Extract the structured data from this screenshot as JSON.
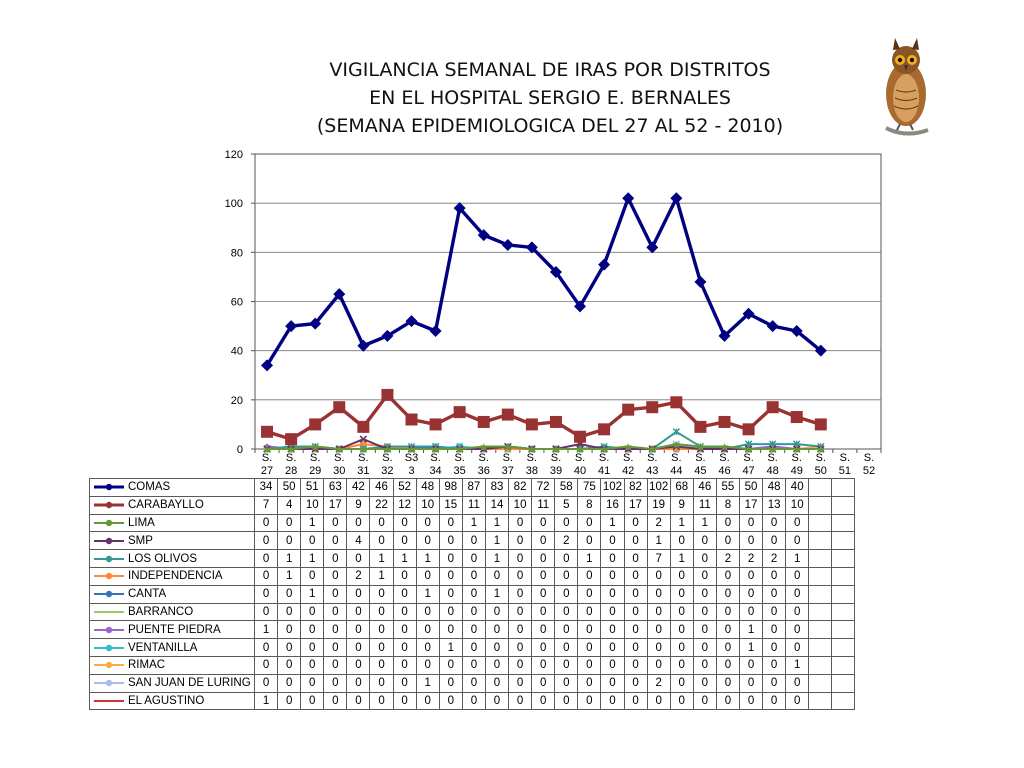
{
  "title_lines": [
    "VIGILANCIA SEMANAL DE IRAS POR DISTRITOS",
    "EN EL HOSPITAL SERGIO E. BERNALES",
    "(SEMANA EPIDEMIOLOGICA DEL 27 AL 52 - 2010)"
  ],
  "chart_data": {
    "type": "line",
    "title": "VIGILANCIA SEMANAL DE IRAS POR DISTRITOS EN EL HOSPITAL SERGIO E. BERNALES (SEMANA EPIDEMIOLOGICA DEL 27 AL 52 - 2010)",
    "categories": [
      [
        "S.",
        "27"
      ],
      [
        "S.",
        "28"
      ],
      [
        "S.",
        "29"
      ],
      [
        "S.",
        "30"
      ],
      [
        "S.",
        "31"
      ],
      [
        "S.",
        "32"
      ],
      [
        "S3",
        "3"
      ],
      [
        "S.",
        "34"
      ],
      [
        "S.",
        "35"
      ],
      [
        "S.",
        "36"
      ],
      [
        "S.",
        "37"
      ],
      [
        "S.",
        "38"
      ],
      [
        "S.",
        "39"
      ],
      [
        "S.",
        "40"
      ],
      [
        "S.",
        "41"
      ],
      [
        "S.",
        "42"
      ],
      [
        "S.",
        "43"
      ],
      [
        "S.",
        "44"
      ],
      [
        "S.",
        "45"
      ],
      [
        "S.",
        "46"
      ],
      [
        "S.",
        "47"
      ],
      [
        "S.",
        "48"
      ],
      [
        "S.",
        "49"
      ],
      [
        "S.",
        "50"
      ],
      [
        "S.",
        "51"
      ],
      [
        "S.",
        "52"
      ]
    ],
    "ylim": [
      0,
      120
    ],
    "yticks": [
      "0",
      "20",
      "40",
      "60",
      "80",
      "100",
      "120"
    ],
    "grid": "horizontal",
    "legend": "data-table",
    "series": [
      {
        "name": "COMAS",
        "color": "#000080",
        "marker": "diamond",
        "values": [
          34,
          50,
          51,
          63,
          42,
          46,
          52,
          48,
          98,
          87,
          83,
          82,
          72,
          58,
          75,
          102,
          82,
          102,
          68,
          46,
          55,
          50,
          48,
          40,
          null,
          null
        ]
      },
      {
        "name": "CARABAYLLO",
        "color": "#993333",
        "marker": "square",
        "values": [
          7,
          4,
          10,
          17,
          9,
          22,
          12,
          10,
          15,
          11,
          14,
          10,
          11,
          5,
          8,
          16,
          17,
          19,
          9,
          11,
          8,
          17,
          13,
          10,
          null,
          null
        ]
      },
      {
        "name": "LIMA",
        "color": "#669933",
        "marker": "triangle",
        "values": [
          0,
          0,
          1,
          0,
          0,
          0,
          0,
          0,
          0,
          1,
          1,
          0,
          0,
          0,
          0,
          1,
          0,
          2,
          1,
          1,
          0,
          0,
          0,
          0,
          null,
          null
        ]
      },
      {
        "name": "SMP",
        "color": "#663366",
        "marker": "x",
        "values": [
          0,
          0,
          0,
          0,
          4,
          0,
          0,
          0,
          0,
          0,
          1,
          0,
          0,
          2,
          0,
          0,
          0,
          1,
          0,
          0,
          0,
          0,
          0,
          0,
          null,
          null
        ]
      },
      {
        "name": "LOS OLIVOS",
        "color": "#339999",
        "marker": "star",
        "values": [
          0,
          1,
          1,
          0,
          0,
          1,
          1,
          1,
          0,
          0,
          1,
          0,
          0,
          0,
          1,
          0,
          0,
          7,
          1,
          0,
          2,
          2,
          2,
          1,
          null,
          null
        ]
      },
      {
        "name": "INDEPENDENCIA",
        "color": "#ff8833",
        "marker": "circle",
        "values": [
          0,
          1,
          0,
          0,
          2,
          1,
          0,
          0,
          0,
          0,
          0,
          0,
          0,
          0,
          0,
          0,
          0,
          0,
          0,
          0,
          0,
          0,
          0,
          0,
          null,
          null
        ]
      },
      {
        "name": "CANTA",
        "color": "#3377bb",
        "marker": "plus",
        "values": [
          0,
          0,
          1,
          0,
          0,
          0,
          0,
          1,
          0,
          0,
          1,
          0,
          0,
          0,
          0,
          0,
          0,
          0,
          0,
          0,
          0,
          0,
          0,
          0,
          null,
          null
        ]
      },
      {
        "name": "BARRANCO",
        "color": "#99cc66",
        "marker": "none",
        "values": [
          0,
          0,
          0,
          0,
          0,
          0,
          0,
          0,
          0,
          0,
          0,
          0,
          0,
          0,
          0,
          0,
          0,
          0,
          0,
          0,
          0,
          0,
          0,
          0,
          null,
          null
        ]
      },
      {
        "name": "PUENTE PIEDRA",
        "color": "#9966cc",
        "marker": "diamond",
        "values": [
          1,
          0,
          0,
          0,
          0,
          0,
          0,
          0,
          0,
          0,
          0,
          0,
          0,
          0,
          0,
          0,
          0,
          0,
          0,
          0,
          0,
          1,
          0,
          0,
          null,
          null
        ]
      },
      {
        "name": "VENTANILLA",
        "color": "#33bbcc",
        "marker": "square",
        "values": [
          0,
          0,
          0,
          0,
          0,
          0,
          0,
          0,
          1,
          0,
          0,
          0,
          0,
          0,
          0,
          0,
          0,
          0,
          0,
          0,
          0,
          1,
          0,
          0,
          null,
          null
        ]
      },
      {
        "name": "RIMAC",
        "color": "#ffaa44",
        "marker": "triangle",
        "values": [
          0,
          0,
          0,
          0,
          0,
          0,
          0,
          0,
          0,
          0,
          0,
          0,
          0,
          0,
          0,
          0,
          0,
          0,
          0,
          0,
          0,
          0,
          0,
          1,
          null,
          null
        ]
      },
      {
        "name": "SAN JUAN DE LURING",
        "color": "#aabbee",
        "marker": "x",
        "values": [
          0,
          0,
          0,
          0,
          0,
          0,
          0,
          1,
          0,
          0,
          0,
          0,
          0,
          0,
          0,
          0,
          0,
          2,
          0,
          0,
          0,
          0,
          0,
          0,
          null,
          null
        ]
      },
      {
        "name": "EL AGUSTINO",
        "color": "#cc3333",
        "marker": "none",
        "values": [
          1,
          0,
          0,
          0,
          0,
          0,
          0,
          0,
          0,
          0,
          0,
          0,
          0,
          0,
          0,
          0,
          0,
          0,
          0,
          0,
          0,
          0,
          0,
          0,
          null,
          null
        ]
      }
    ]
  },
  "logo": {
    "icon": "owl-icon"
  }
}
